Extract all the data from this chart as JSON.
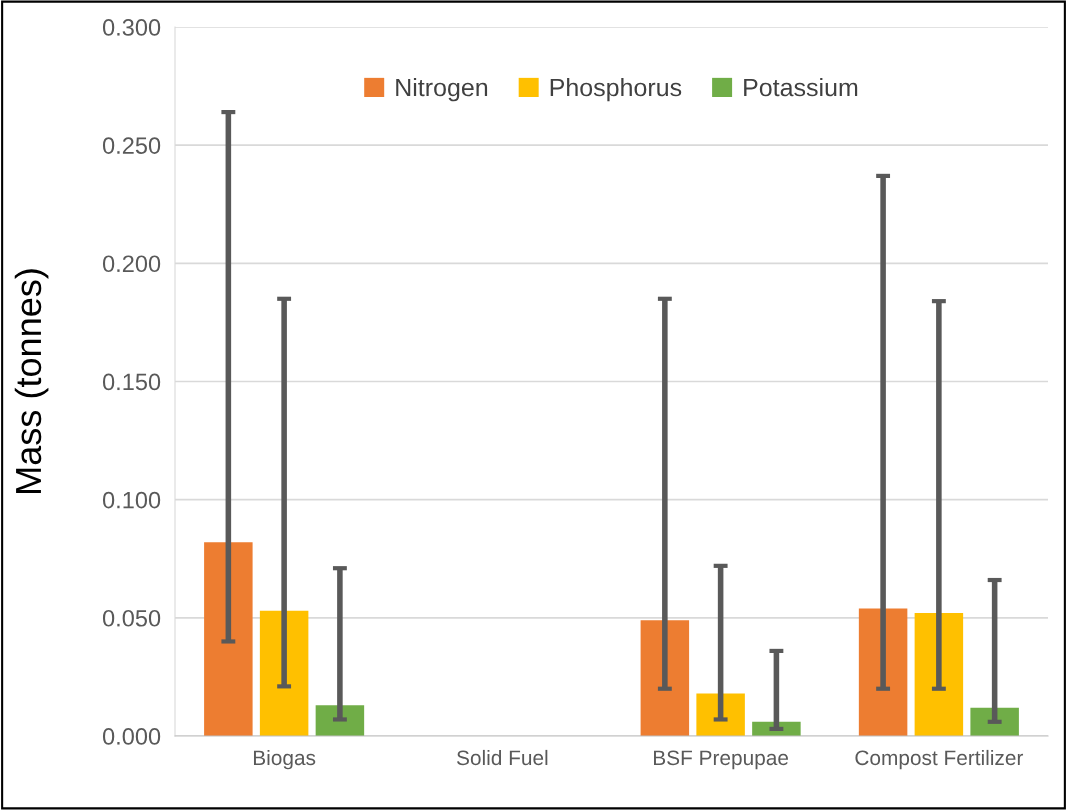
{
  "chart_data": {
    "type": "bar",
    "ylabel": "Mass (tonnes)",
    "categories": [
      "Biogas",
      "Solid Fuel",
      "BSF Prepupae",
      "Compost Fertilizer"
    ],
    "series": [
      {
        "name": "Nitrogen",
        "color": "#ed7d31",
        "values": [
          0.082,
          0,
          0.049,
          0.054
        ],
        "errors": [
          [
            0.04,
            0.264
          ],
          null,
          [
            0.02,
            0.185
          ],
          [
            0.02,
            0.237
          ]
        ]
      },
      {
        "name": "Phosphorus",
        "color": "#ffc000",
        "values": [
          0.053,
          0,
          0.018,
          0.052
        ],
        "errors": [
          [
            0.021,
            0.185
          ],
          null,
          [
            0.007,
            0.072
          ],
          [
            0.02,
            0.184
          ]
        ]
      },
      {
        "name": "Potassium",
        "color": "#70ad47",
        "values": [
          0.013,
          0,
          0.006,
          0.012
        ],
        "errors": [
          [
            0.007,
            0.071
          ],
          null,
          [
            0.003,
            0.036
          ],
          [
            0.006,
            0.066
          ]
        ]
      }
    ],
    "ylim": [
      0,
      0.3
    ],
    "yticks": [
      {
        "value": 0,
        "label": "0.000"
      },
      {
        "value": 0.05,
        "label": "0.050"
      },
      {
        "value": 0.1,
        "label": "0.100"
      },
      {
        "value": 0.15,
        "label": "0.150"
      },
      {
        "value": 0.2,
        "label": "0.200"
      },
      {
        "value": 0.25,
        "label": "0.250"
      },
      {
        "value": 0.3,
        "label": "0.300"
      }
    ],
    "grid": "y",
    "legend": "top"
  }
}
